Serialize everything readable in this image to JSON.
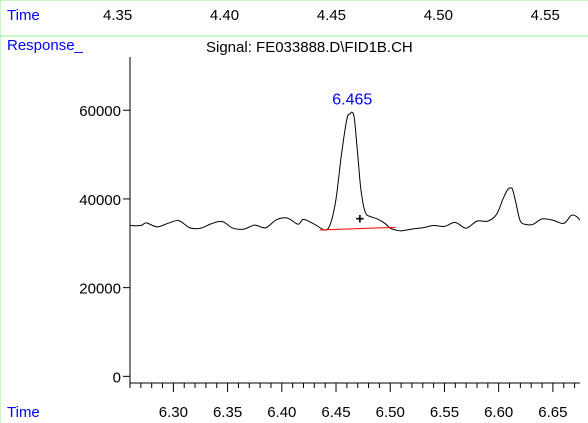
{
  "top_axis": {
    "label": "Time",
    "ticks": [
      "4.35",
      "4.40",
      "4.45",
      "4.50",
      "4.55"
    ],
    "tick_values": [
      4.35,
      4.4,
      4.45,
      4.5,
      4.55
    ],
    "range": [
      4.295,
      4.57
    ]
  },
  "colors": {
    "trace": "#000000",
    "baseline": "#ff0000",
    "axis_label": "#0000ff",
    "peak_label": "#0000ff",
    "frame": "#90ee90"
  },
  "chart_data": {
    "type": "line",
    "title": "Signal: FE033888.D\\FID1B.CH",
    "xlabel": "Time",
    "ylabel": "Response_",
    "xlim": [
      6.26,
      6.675
    ],
    "ylim": [
      -1500,
      72000
    ],
    "grid": false,
    "xticks": [
      "6.30",
      "6.35",
      "6.40",
      "6.45",
      "6.50",
      "6.55",
      "6.60",
      "6.65"
    ],
    "xtick_values": [
      6.3,
      6.35,
      6.4,
      6.45,
      6.5,
      6.55,
      6.6,
      6.65
    ],
    "xminor_step": 0.01,
    "yticks": [
      "0",
      "20000",
      "40000",
      "60000"
    ],
    "ytick_values": [
      0,
      20000,
      40000,
      60000
    ],
    "series": [
      {
        "x": [
          6.26,
          6.27,
          6.275,
          6.285,
          6.295,
          6.305,
          6.315,
          6.325,
          6.335,
          6.345,
          6.355,
          6.365,
          6.375,
          6.385,
          6.395,
          6.405,
          6.415,
          6.42,
          6.43,
          6.44,
          6.445,
          6.45,
          6.455,
          6.46,
          6.463,
          6.465,
          6.467,
          6.47,
          6.473,
          6.477,
          6.482,
          6.488,
          6.495,
          6.5,
          6.505,
          6.51,
          6.52,
          6.53,
          6.54,
          6.55,
          6.56,
          6.57,
          6.58,
          6.59,
          6.598,
          6.604,
          6.608,
          6.611,
          6.613,
          6.616,
          6.62,
          6.626,
          6.632,
          6.64,
          6.65,
          6.66,
          6.667,
          6.672,
          6.675
        ],
        "y": [
          34000,
          34000,
          34600,
          33700,
          34500,
          35100,
          33500,
          33400,
          34400,
          34900,
          33400,
          33200,
          34100,
          33500,
          35300,
          35700,
          34300,
          35400,
          34300,
          33000,
          34500,
          40000,
          50000,
          58000,
          59200,
          59500,
          58000,
          50000,
          42000,
          37000,
          36000,
          35500,
          34500,
          33400,
          33000,
          32800,
          33200,
          33500,
          34000,
          33800,
          34700,
          33400,
          35000,
          35000,
          36500,
          40000,
          42000,
          42500,
          42000,
          39000,
          35000,
          34200,
          34300,
          35500,
          35200,
          34500,
          36300,
          36000,
          35200
        ]
      }
    ],
    "baseline_segment": {
      "x": [
        6.435,
        6.505
      ],
      "y": [
        33000,
        33600
      ]
    },
    "marker": {
      "symbol": "+",
      "x": 6.472,
      "y": 35800
    },
    "peak_annotations": [
      {
        "label": "6.465",
        "x": 6.465,
        "y": 59500
      }
    ]
  }
}
